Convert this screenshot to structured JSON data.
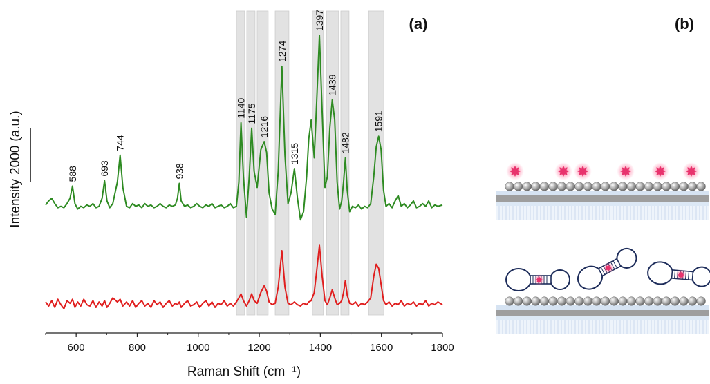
{
  "chart_data": {
    "type": "line",
    "panel_label": "(a)",
    "x_label": "Raman Shift (cm⁻¹)",
    "y_label": "Intensity",
    "y_units": "(a.u.)",
    "scale_bar": 2000,
    "xlim": [
      500,
      1800
    ],
    "xticks": [
      600,
      800,
      1000,
      1200,
      1400,
      1600,
      1800
    ],
    "ylim": [
      0,
      12000
    ],
    "x": [
      500,
      510,
      520,
      530,
      540,
      550,
      560,
      570,
      580,
      588,
      596,
      605,
      615,
      625,
      635,
      645,
      655,
      665,
      675,
      685,
      693,
      701,
      710,
      720,
      735,
      744,
      753,
      765,
      775,
      785,
      795,
      805,
      815,
      825,
      835,
      845,
      855,
      865,
      875,
      885,
      895,
      905,
      915,
      925,
      932,
      938,
      944,
      955,
      965,
      975,
      985,
      995,
      1005,
      1015,
      1025,
      1035,
      1045,
      1055,
      1065,
      1075,
      1085,
      1095,
      1105,
      1115,
      1125,
      1133,
      1140,
      1148,
      1158,
      1167,
      1175,
      1183,
      1193,
      1205,
      1216,
      1224,
      1232,
      1242,
      1252,
      1262,
      1274,
      1284,
      1294,
      1304,
      1315,
      1325,
      1335,
      1345,
      1355,
      1362,
      1370,
      1380,
      1388,
      1397,
      1406,
      1415,
      1423,
      1431,
      1439,
      1447,
      1455,
      1463,
      1470,
      1476,
      1482,
      1488,
      1496,
      1505,
      1515,
      1525,
      1535,
      1545,
      1555,
      1565,
      1575,
      1583,
      1591,
      1599,
      1607,
      1615,
      1625,
      1635,
      1645,
      1655,
      1665,
      1675,
      1685,
      1695,
      1705,
      1715,
      1725,
      1735,
      1745,
      1755,
      1765,
      1775,
      1785,
      1800
    ],
    "series": [
      {
        "color": "#2e8b22",
        "values": [
          4750,
          4900,
          5000,
          4800,
          4650,
          4700,
          4650,
          4800,
          5000,
          5450,
          4800,
          4600,
          4700,
          4650,
          4750,
          4700,
          4800,
          4650,
          4700,
          5000,
          5650,
          4900,
          4650,
          4800,
          5600,
          6600,
          5400,
          4700,
          4650,
          4800,
          4700,
          4750,
          4650,
          4800,
          4700,
          4750,
          4650,
          4700,
          4800,
          4700,
          4650,
          4750,
          4700,
          4750,
          5000,
          5550,
          4900,
          4700,
          4750,
          4650,
          4700,
          4800,
          4700,
          4650,
          4750,
          4700,
          4800,
          4650,
          4700,
          4750,
          4650,
          4700,
          4800,
          4650,
          4700,
          5600,
          7800,
          5800,
          4300,
          5800,
          7600,
          6000,
          5400,
          6800,
          7100,
          6700,
          5200,
          4600,
          4400,
          6000,
          9900,
          6600,
          4800,
          5200,
          6100,
          5000,
          4200,
          4500,
          5800,
          7200,
          7900,
          6500,
          8600,
          11050,
          8200,
          5400,
          5800,
          7600,
          8650,
          7900,
          5600,
          4600,
          4900,
          5600,
          6500,
          5300,
          4500,
          4700,
          4650,
          4750,
          4600,
          4700,
          4650,
          4800,
          5800,
          6900,
          7300,
          6800,
          5300,
          4700,
          4800,
          4650,
          4900,
          5100,
          4700,
          4800,
          4650,
          4750,
          4900,
          4650,
          4700,
          4800,
          4700,
          4900,
          4650,
          4750,
          4700,
          4750
        ]
      },
      {
        "color": "#e01e1e",
        "values": [
          1150,
          1000,
          1200,
          950,
          1250,
          1050,
          900,
          1200,
          1100,
          1250,
          950,
          1150,
          1000,
          1250,
          1050,
          1000,
          1200,
          950,
          1150,
          1000,
          1200,
          950,
          1100,
          1300,
          1150,
          1250,
          1000,
          1150,
          1000,
          1200,
          950,
          1100,
          1200,
          1000,
          1100,
          950,
          1200,
          1050,
          1150,
          950,
          1100,
          1200,
          1000,
          1100,
          1050,
          1150,
          950,
          1100,
          1200,
          1000,
          1050,
          1150,
          950,
          1100,
          1200,
          1000,
          1150,
          950,
          1100,
          1050,
          1200,
          1000,
          1100,
          1000,
          1150,
          1300,
          1450,
          1200,
          1000,
          1200,
          1450,
          1200,
          1100,
          1500,
          1750,
          1550,
          1150,
          1050,
          1100,
          1700,
          3050,
          1700,
          1100,
          1050,
          1150,
          1050,
          1000,
          1100,
          1050,
          1150,
          1200,
          1500,
          2300,
          3250,
          2100,
          1200,
          1050,
          1300,
          1600,
          1300,
          1050,
          1100,
          1200,
          1500,
          1950,
          1400,
          1100,
          1050,
          1150,
          1000,
          1100,
          1050,
          1150,
          1300,
          2100,
          2550,
          2400,
          1800,
          1200,
          1050,
          1150,
          1000,
          1100,
          1050,
          1200,
          1000,
          1100,
          1050,
          1150,
          1000,
          1100,
          1050,
          1200,
          1000,
          1100,
          1050,
          1150,
          1050
        ]
      }
    ],
    "bands": [
      [
        1125,
        1152
      ],
      [
        1159,
        1186
      ],
      [
        1193,
        1229
      ],
      [
        1252,
        1297
      ],
      [
        1374,
        1410
      ],
      [
        1420,
        1460
      ],
      [
        1467,
        1494
      ],
      [
        1558,
        1608
      ]
    ],
    "band_color": "#d9d9d9",
    "annotations": [
      588,
      693,
      744,
      938,
      1140,
      1175,
      1216,
      1274,
      1315,
      1397,
      1439,
      1482,
      1591
    ]
  },
  "diagram": {
    "label": "(b)"
  }
}
